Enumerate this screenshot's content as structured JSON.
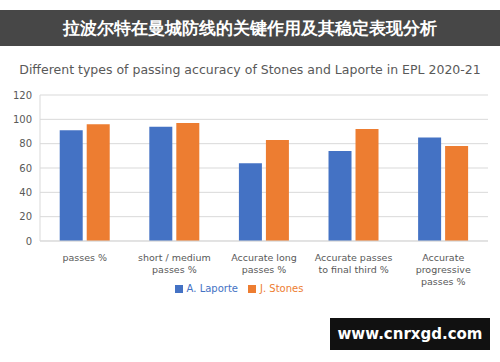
{
  "chart_data": {
    "type": "bar",
    "title": "Different types of passing accuracy of Stones and Laporte in EPL 2020-21",
    "categories": [
      "passes %",
      "short / medium passes %",
      "Accurate long passes %",
      "Accurate passes to final third %",
      "Accurate progressive passes %"
    ],
    "series": [
      {
        "name": "A. Laporte",
        "color": "#4472c4",
        "values": [
          91,
          94,
          64,
          74,
          85
        ]
      },
      {
        "name": "J. Stones",
        "color": "#ed7d31",
        "values": [
          96,
          97,
          83,
          92,
          78
        ]
      }
    ],
    "ylim": [
      0,
      120
    ],
    "yticks": [
      0,
      20,
      40,
      60,
      80,
      100,
      120
    ],
    "grid": true,
    "legend": "bottom"
  },
  "banner": "拉波尔特在曼城防线的关键作用及其稳定表现分析",
  "watermark": "www.cnrxgd.com"
}
